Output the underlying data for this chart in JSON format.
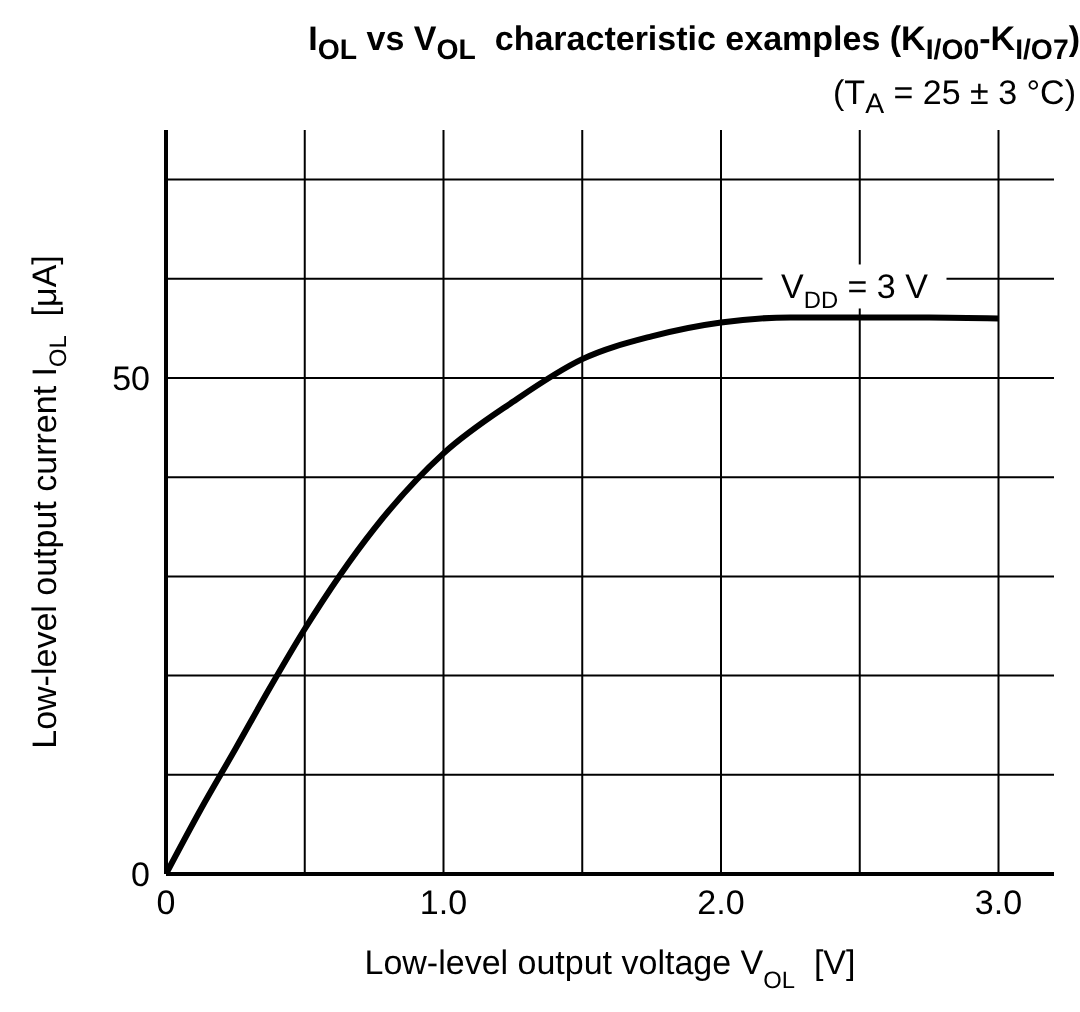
{
  "chart_data": {
    "type": "line",
    "title": "I$_{OL}$ vs V$_{OL}$  characteristic examples (K$_{I/O0}$-K$_{I/O7}$)",
    "subtitle": "(T$_{A}$ = 25 ± 3 °C)",
    "xlabel": "Low-level output voltage V$_{OL}$  [V]",
    "ylabel": "Low-level output current I$_{OL}$  [μA]",
    "x": [
      0,
      0.125,
      0.25,
      0.375,
      0.5,
      0.75,
      1.0,
      1.25,
      1.5,
      1.75,
      2.0,
      2.25,
      2.5,
      2.75,
      3.0
    ],
    "series": [
      {
        "color": "#000000",
        "values": [
          0,
          6.5,
          12.6,
          18.8,
          24.7,
          34.8,
          42.4,
          47.6,
          51.9,
          54.2,
          55.6,
          56.1,
          56.1,
          56.1,
          56.0
        ]
      }
    ],
    "annotations": [
      "V$_{DD}$ = 3 V"
    ],
    "xlim": [
      0,
      3.2
    ],
    "xticks": [
      0,
      {
        "value": 0.5,
        "label": null
      },
      {
        "value": 1,
        "label": "1.0"
      },
      {
        "value": 1.5,
        "label": null
      },
      {
        "value": 2,
        "label": "2.0"
      },
      {
        "value": 2.5,
        "label": null
      },
      {
        "value": 3,
        "label": "3.0"
      }
    ],
    "ylim": [
      0,
      75
    ],
    "yticks": [
      0,
      {
        "value": 10,
        "label": null
      },
      {
        "value": 20,
        "label": null
      },
      {
        "value": 30,
        "label": null
      },
      {
        "value": 40,
        "label": null
      },
      50,
      {
        "value": 60,
        "label": null
      },
      {
        "value": 70,
        "label": null
      }
    ],
    "grid": true,
    "marker": "none",
    "line_style": "solid"
  }
}
